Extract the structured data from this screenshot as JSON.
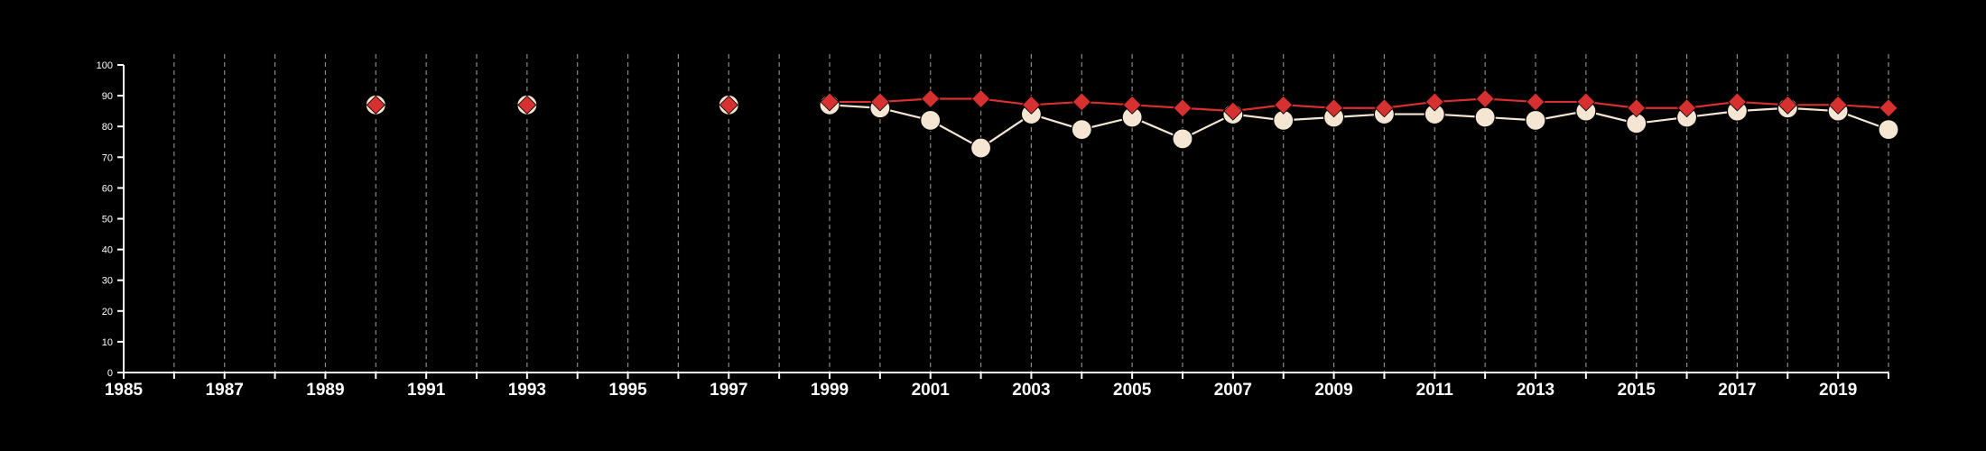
{
  "chart_data": {
    "type": "line",
    "title": "",
    "xlabel": "",
    "ylabel": "",
    "xlim": [
      1985,
      2020
    ],
    "ylim": [
      0,
      100
    ],
    "y_ticks": [
      0,
      10,
      20,
      30,
      40,
      50,
      60,
      70,
      80,
      90,
      100
    ],
    "y_tick_labels": [
      "0",
      "10",
      "20",
      "30",
      "40",
      "50",
      "60",
      "70",
      "80",
      "90",
      "100"
    ],
    "x_ticks": [
      1985,
      1987,
      1989,
      1991,
      1993,
      1995,
      1997,
      1999,
      2001,
      2003,
      2005,
      2007,
      2009,
      2011,
      2013,
      2015,
      2017,
      2019
    ],
    "x_tick_labels": [
      "1985",
      "1987",
      "1989",
      "1991",
      "1993",
      "1995",
      "1997",
      "1999",
      "2001",
      "2003",
      "2005",
      "2007",
      "2009",
      "2011",
      "2013",
      "2015",
      "2017",
      "2019"
    ],
    "grid": "vertical dashed lines at every year",
    "background": "#000000",
    "series": [
      {
        "marker": "circle",
        "color": "#f5e6d3",
        "points": [
          {
            "x": 1990,
            "y": 87
          },
          {
            "x": 1993,
            "y": 87
          },
          {
            "x": 1997,
            "y": 87
          },
          {
            "x": 1999,
            "y": 87
          },
          {
            "x": 2000,
            "y": 86
          },
          {
            "x": 2001,
            "y": 82
          },
          {
            "x": 2002,
            "y": 73
          },
          {
            "x": 2003,
            "y": 84
          },
          {
            "x": 2004,
            "y": 79
          },
          {
            "x": 2005,
            "y": 83
          },
          {
            "x": 2006,
            "y": 76
          },
          {
            "x": 2007,
            "y": 84
          },
          {
            "x": 2008,
            "y": 82
          },
          {
            "x": 2009,
            "y": 83
          },
          {
            "x": 2010,
            "y": 84
          },
          {
            "x": 2011,
            "y": 84
          },
          {
            "x": 2012,
            "y": 83
          },
          {
            "x": 2013,
            "y": 82
          },
          {
            "x": 2014,
            "y": 85
          },
          {
            "x": 2015,
            "y": 81
          },
          {
            "x": 2016,
            "y": 83
          },
          {
            "x": 2017,
            "y": 85
          },
          {
            "x": 2018,
            "y": 86
          },
          {
            "x": 2019,
            "y": 85
          },
          {
            "x": 2020,
            "y": 79
          }
        ],
        "line_segment_start_year": 1999
      },
      {
        "marker": "diamond",
        "color": "#d63031",
        "points": [
          {
            "x": 1990,
            "y": 87
          },
          {
            "x": 1993,
            "y": 87
          },
          {
            "x": 1997,
            "y": 87
          },
          {
            "x": 1999,
            "y": 88
          },
          {
            "x": 2000,
            "y": 88
          },
          {
            "x": 2001,
            "y": 89
          },
          {
            "x": 2002,
            "y": 89
          },
          {
            "x": 2003,
            "y": 87
          },
          {
            "x": 2004,
            "y": 88
          },
          {
            "x": 2005,
            "y": 87
          },
          {
            "x": 2006,
            "y": 86
          },
          {
            "x": 2007,
            "y": 85
          },
          {
            "x": 2008,
            "y": 87
          },
          {
            "x": 2009,
            "y": 86
          },
          {
            "x": 2010,
            "y": 86
          },
          {
            "x": 2011,
            "y": 88
          },
          {
            "x": 2012,
            "y": 89
          },
          {
            "x": 2013,
            "y": 88
          },
          {
            "x": 2014,
            "y": 88
          },
          {
            "x": 2015,
            "y": 86
          },
          {
            "x": 2016,
            "y": 86
          },
          {
            "x": 2017,
            "y": 88
          },
          {
            "x": 2018,
            "y": 87
          },
          {
            "x": 2019,
            "y": 87
          },
          {
            "x": 2020,
            "y": 86
          }
        ],
        "line_segment_start_year": 1999
      }
    ]
  }
}
